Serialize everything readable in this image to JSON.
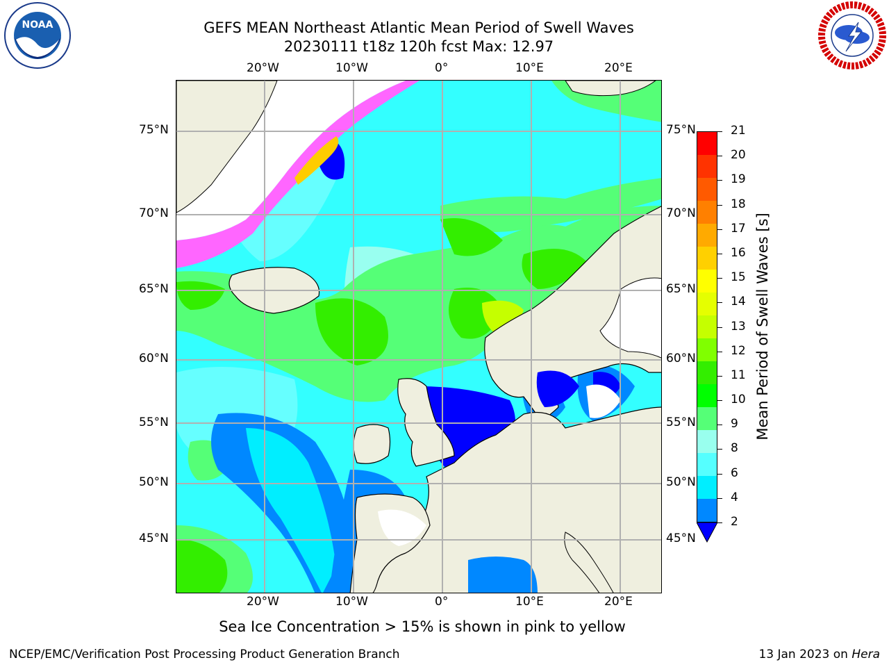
{
  "title": {
    "line1": "GEFS MEAN Northeast Atlantic Mean Period of Swell Waves",
    "line2": "20230111 t18z 120h fcst   Max: 12.97"
  },
  "logos": {
    "left": {
      "name": "noaa-logo",
      "text": "NOAA"
    },
    "right": {
      "name": "national-weather-service-logo",
      "text": "NATIONAL WEATHER SERVICE"
    }
  },
  "map": {
    "lon_top_labels": [
      "20°W",
      "10°W",
      "0°",
      "10°E",
      "20°E"
    ],
    "lon_bottom_labels": [
      "20°W",
      "10°W",
      "0°",
      "10°E",
      "20°E"
    ],
    "lat_left_labels": [
      "75°N",
      "70°N",
      "65°N",
      "60°N",
      "55°N",
      "50°N",
      "45°N"
    ],
    "lat_right_labels": [
      "75°N",
      "70°N",
      "65°N",
      "60°N",
      "55°N",
      "50°N",
      "45°N"
    ],
    "land_color": "#efefdf",
    "grid_color": "#b0b0b0"
  },
  "colorbar": {
    "label": "Mean Period of Swell Waves [s]",
    "ticks": [
      "21",
      "20",
      "19",
      "18",
      "17",
      "16",
      "15",
      "14",
      "13",
      "12",
      "11",
      "10",
      "9",
      "8",
      "6",
      "4",
      "2"
    ],
    "colors_top_to_bottom": [
      "#ff0000",
      "#ff3300",
      "#ff5a00",
      "#ff8000",
      "#ffaa00",
      "#ffd000",
      "#ffff00",
      "#e5ff00",
      "#c5ff00",
      "#80ff00",
      "#33ee00",
      "#00ff00",
      "#55ff77",
      "#99ffee",
      "#55ffff",
      "#00eeff",
      "#0088ff"
    ],
    "extend_color": "#0000ff"
  },
  "caption": "Sea Ice Concentration > 15% is shown in pink to yellow",
  "footer": {
    "left": "NCEP/EMC/Verification Post Processing Product Generation Branch",
    "right_date": "13 Jan 2023 on ",
    "right_machine": "Hera"
  }
}
